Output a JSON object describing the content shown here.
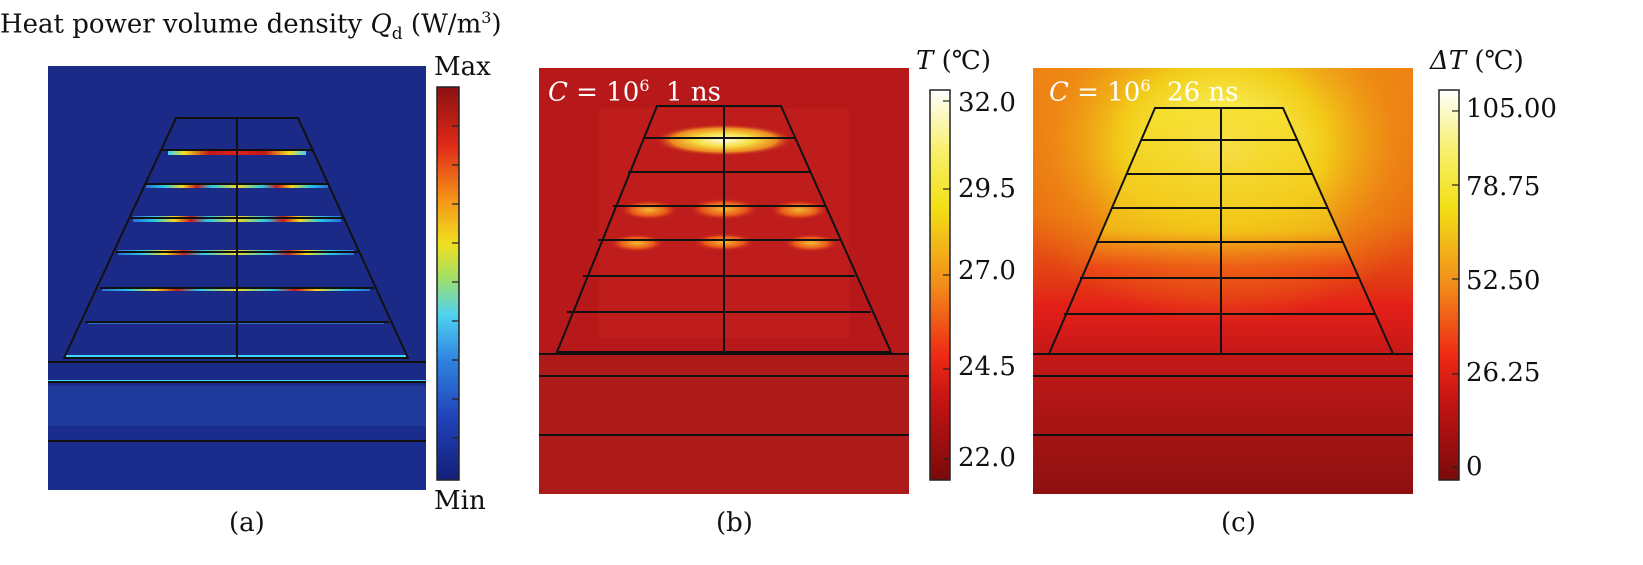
{
  "title": {
    "prefix": "Heat power volume density ",
    "symbol": "Q",
    "sub": "d",
    "unit_open": " (W/m",
    "unit_sup": "3",
    "unit_close": ")"
  },
  "panel_a": {
    "caption": "(a)",
    "colorbar": {
      "max_label": "Max",
      "min_label": "Min"
    },
    "colors": {
      "bg": "#1a2a86",
      "bottom": "#1b2c8a"
    }
  },
  "panel_b": {
    "caption": "(b)",
    "c_symbol": "C",
    "c_eq": " = 10",
    "c_exp": "6",
    "time": "1 ns",
    "colorbar": {
      "symbol": "T",
      "unit": " (℃)",
      "ticks": [
        "32.0",
        "29.5",
        "27.0",
        "24.5",
        "22.0"
      ]
    },
    "colors": {
      "bg": "#b7191b"
    }
  },
  "panel_c": {
    "caption": "(c)",
    "c_symbol": "C",
    "c_eq": " = 10",
    "c_exp": "6",
    "time": "26 ns",
    "colorbar": {
      "symbol": "ΔT",
      "unit": " (℃)",
      "ticks": [
        "105.00",
        "78.75",
        "52.50",
        "26.25",
        "0"
      ]
    },
    "colors": {
      "bg": "#e8600f"
    }
  }
}
